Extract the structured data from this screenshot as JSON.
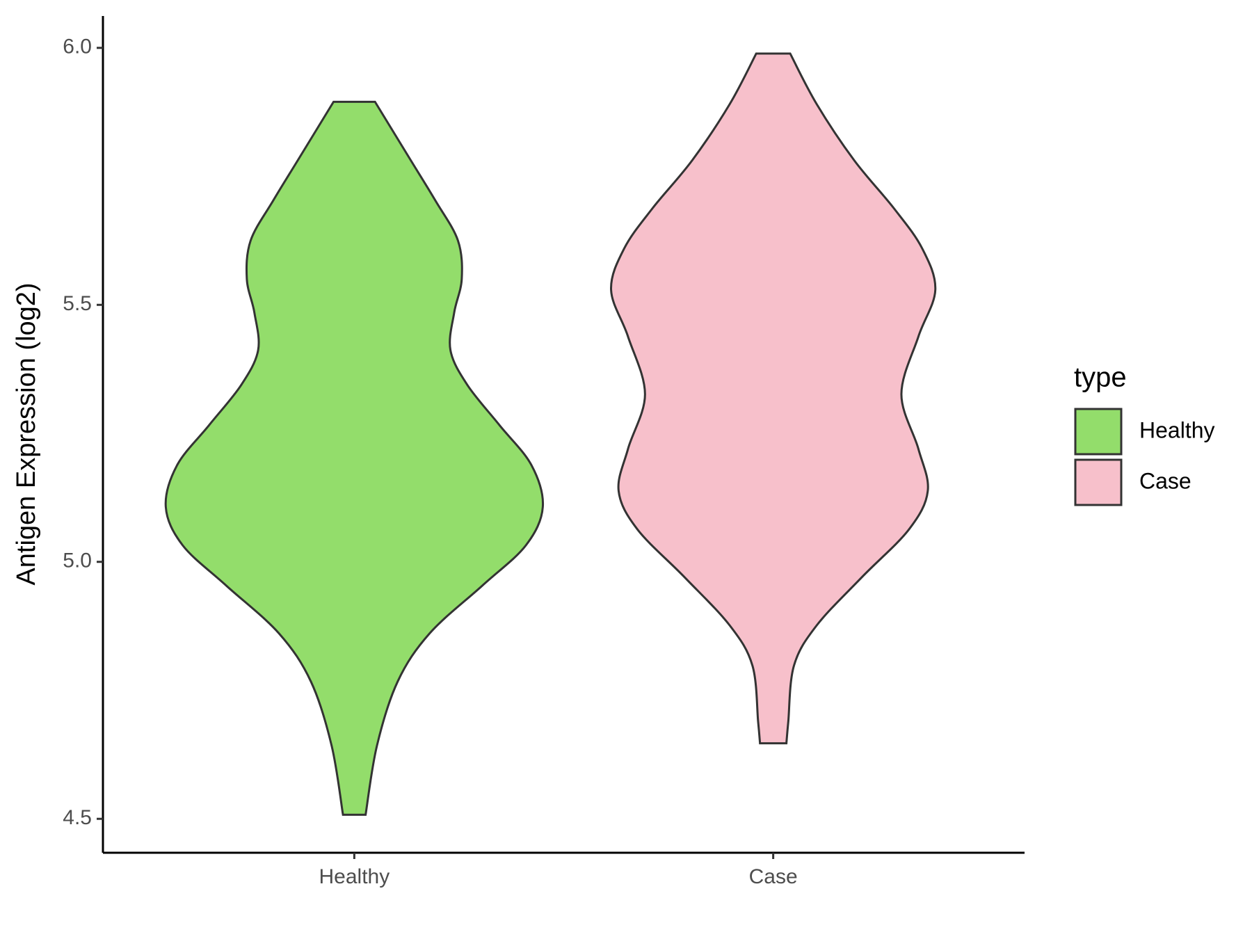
{
  "chart_data": {
    "type": "violin",
    "ylabel": "Antigen Expression (log2)",
    "ylim": [
      4.434,
      6.062
    ],
    "yticks": [
      {
        "value": 4.5,
        "label": "4.5"
      },
      {
        "value": 5,
        "label": "5.0"
      },
      {
        "value": 5.5,
        "label": "5.5"
      },
      {
        "value": 6,
        "label": "6.0"
      }
    ],
    "categories": [
      "Healthy",
      "Case"
    ],
    "legend_title": "type",
    "series": [
      {
        "name": "Healthy",
        "color": "#93dd6b",
        "y": [
          5.895,
          5.781,
          5.703,
          5.625,
          5.55,
          5.485,
          5.412,
          5.344,
          5.266,
          5.188,
          5.107,
          5.032,
          4.954,
          4.861,
          4.767,
          4.642,
          4.508
        ],
        "density": [
          0.11,
          0.3,
          0.43,
          0.55,
          0.57,
          0.53,
          0.51,
          0.6,
          0.77,
          0.94,
          1,
          0.91,
          0.68,
          0.4,
          0.23,
          0.12,
          0.06
        ]
      },
      {
        "name": "Case",
        "color": "#f7c0cb",
        "y": [
          5.989,
          5.891,
          5.781,
          5.688,
          5.61,
          5.529,
          5.438,
          5.326,
          5.22,
          5.138,
          5.063,
          4.97,
          4.876,
          4.798,
          4.689,
          4.647
        ],
        "density": [
          0.09,
          0.23,
          0.43,
          0.64,
          0.79,
          0.86,
          0.77,
          0.68,
          0.77,
          0.82,
          0.72,
          0.47,
          0.23,
          0.11,
          0.08,
          0.07
        ]
      }
    ]
  }
}
